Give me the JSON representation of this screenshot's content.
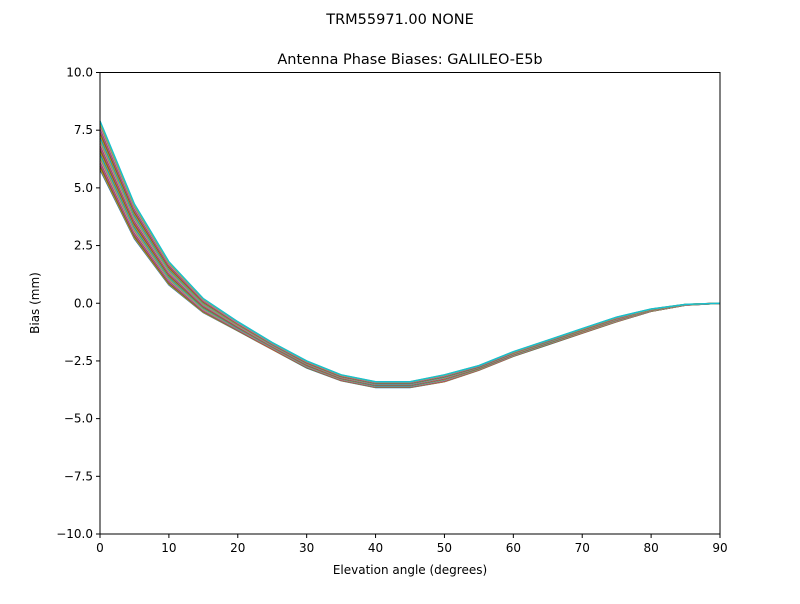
{
  "suptitle": "TRM55971.00      NONE",
  "chart_data": {
    "type": "line",
    "title": "Antenna Phase Biases: GALILEO-E5b",
    "xlabel": "Elevation angle (degrees)",
    "ylabel": "Bias (mm)",
    "xlim": [
      0,
      90
    ],
    "ylim": [
      -10,
      10
    ],
    "xticks": [
      0,
      10,
      20,
      30,
      40,
      50,
      60,
      70,
      80,
      90
    ],
    "yticks": [
      -10.0,
      -7.5,
      -5.0,
      -2.5,
      0.0,
      2.5,
      5.0,
      7.5,
      10.0
    ],
    "ytick_labels": [
      "−10.0",
      "−7.5",
      "−5.0",
      "−2.5",
      "0.0",
      "2.5",
      "5.0",
      "7.5",
      "10.0"
    ],
    "xtick_labels": [
      "0",
      "10",
      "20",
      "30",
      "40",
      "50",
      "60",
      "70",
      "80",
      "90"
    ],
    "grid": false,
    "legend": null,
    "x": [
      0,
      5,
      10,
      15,
      20,
      25,
      30,
      35,
      40,
      45,
      50,
      55,
      60,
      65,
      70,
      75,
      80,
      85,
      90
    ],
    "series_note": "Many overlapping azimuth curves; envelope described by min/max series",
    "series": [
      {
        "name": "upper",
        "color": "#17becf",
        "values": [
          7.9,
          4.3,
          1.8,
          0.2,
          -0.8,
          -1.7,
          -2.5,
          -3.1,
          -3.4,
          -3.4,
          -3.1,
          -2.7,
          -2.1,
          -1.6,
          -1.1,
          -0.6,
          -0.25,
          -0.05,
          0.0
        ]
      },
      {
        "name": "mean",
        "color": "#2ca02c",
        "values": [
          6.8,
          3.6,
          1.3,
          -0.1,
          -1.0,
          -1.8,
          -2.6,
          -3.2,
          -3.5,
          -3.5,
          -3.25,
          -2.8,
          -2.2,
          -1.7,
          -1.2,
          -0.7,
          -0.3,
          -0.05,
          0.0
        ]
      },
      {
        "name": "lower",
        "color": "#e377c2",
        "values": [
          5.8,
          2.8,
          0.8,
          -0.4,
          -1.2,
          -2.0,
          -2.8,
          -3.35,
          -3.65,
          -3.65,
          -3.4,
          -2.9,
          -2.3,
          -1.8,
          -1.3,
          -0.8,
          -0.35,
          -0.08,
          0.0
        ]
      }
    ],
    "palette": [
      "#1f77b4",
      "#ff7f0e",
      "#2ca02c",
      "#d62728",
      "#9467bd",
      "#8c564b",
      "#e377c2",
      "#7f7f7f",
      "#bcbd22",
      "#17becf"
    ]
  }
}
